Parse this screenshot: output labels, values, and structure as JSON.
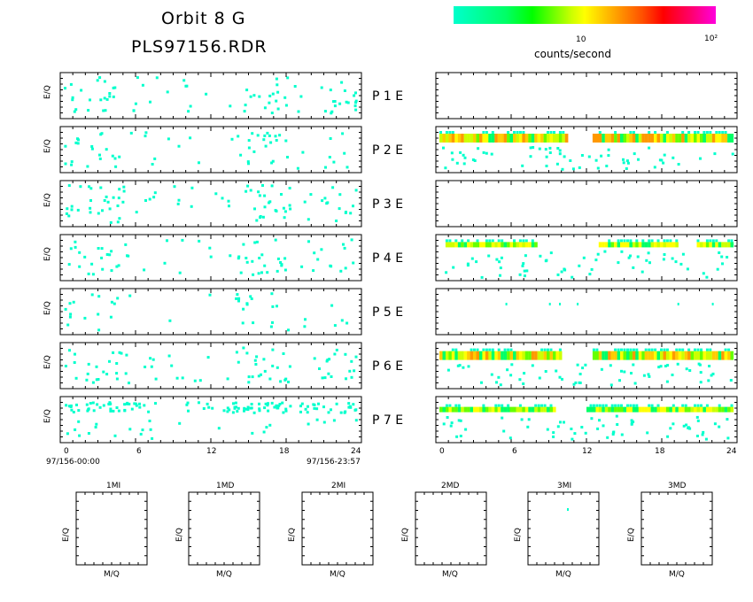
{
  "header": {
    "title_line1": "Orbit 8 G",
    "title_line2": "PLS97156.RDR"
  },
  "colorbar": {
    "tick_labels": [
      "10",
      "10²"
    ],
    "label": "counts/second",
    "colors": [
      "#00ffcc",
      "#00ff00",
      "#ffff00",
      "#ff8000",
      "#ff0033",
      "#ff00dd"
    ]
  },
  "rows": [
    {
      "label": "P 1 E"
    },
    {
      "label": "P 2 E"
    },
    {
      "label": "P 3 E"
    },
    {
      "label": "P 4 E"
    },
    {
      "label": "P 5 E"
    },
    {
      "label": "P 6 E"
    },
    {
      "label": "P 7 E"
    }
  ],
  "left_axis": {
    "ylabel": "E/Q",
    "xticks": [
      "0",
      "6",
      "12",
      "18",
      "24"
    ],
    "start_time": "97/156-00:00",
    "end_time": "97/156-23:57"
  },
  "right_axis": {
    "xticks": [
      "0",
      "6",
      "12",
      "18",
      "24"
    ]
  },
  "bottom_panels": [
    {
      "title": "1MI",
      "ylabel": "E/Q",
      "xlabel": "M/Q"
    },
    {
      "title": "1MD",
      "ylabel": "E/Q",
      "xlabel": "M/Q"
    },
    {
      "title": "2MI",
      "ylabel": "E/Q",
      "xlabel": "M/Q"
    },
    {
      "title": "2MD",
      "ylabel": "E/Q",
      "xlabel": "M/Q"
    },
    {
      "title": "3MI",
      "ylabel": "E/Q",
      "xlabel": "M/Q"
    },
    {
      "title": "3MD",
      "ylabel": "E/Q",
      "xlabel": "M/Q"
    }
  ],
  "chart_data": {
    "type": "heatmap",
    "x_range_hours": [
      0,
      24
    ],
    "colorbar_scale": "log",
    "left_column_panels": [
      "P1",
      "P2",
      "P3",
      "P4",
      "P5",
      "P6",
      "P7"
    ],
    "right_column_panels": [
      "E1",
      "E2",
      "E3",
      "E4",
      "E5",
      "E6",
      "E7"
    ],
    "right_bands": [
      {
        "panel": "E2",
        "y_frac": 0.25,
        "intervals_hours": [
          [
            0,
            10.5
          ],
          [
            12.5,
            24
          ]
        ]
      },
      {
        "panel": "E4",
        "y_frac": 0.22,
        "intervals_hours": [
          [
            0.5,
            8
          ],
          [
            13,
            19.5
          ],
          [
            21,
            24
          ]
        ]
      },
      {
        "panel": "E6",
        "y_frac": 0.28,
        "intervals_hours": [
          [
            0,
            10
          ],
          [
            12.5,
            24
          ]
        ]
      },
      {
        "panel": "E7",
        "y_frac": 0.28,
        "intervals_hours": [
          [
            0,
            9.5
          ],
          [
            12,
            24
          ]
        ]
      }
    ]
  }
}
